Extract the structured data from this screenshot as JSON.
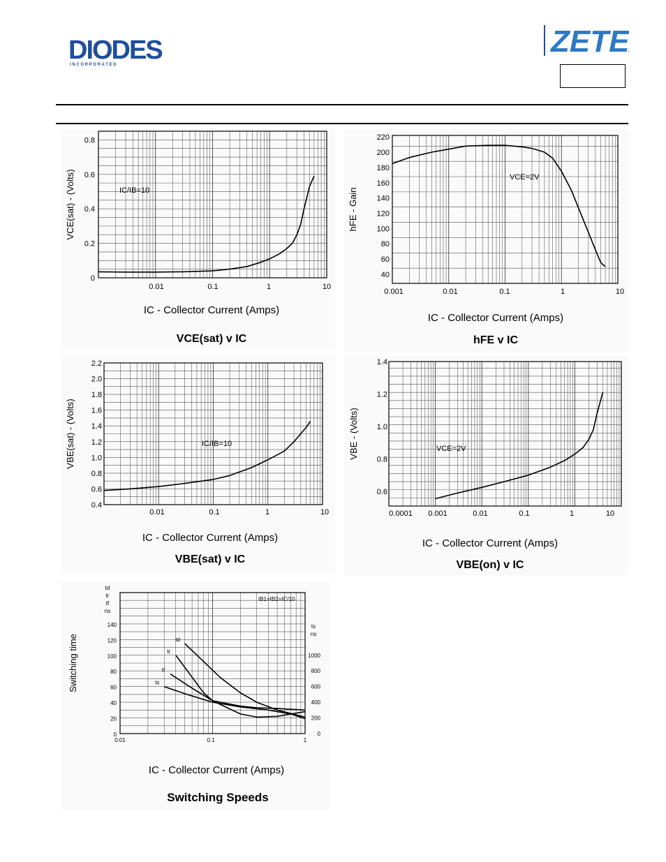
{
  "header": {
    "left_logo_text": "DIODES",
    "left_logo_subtext": "I N C O R P O R A T E D",
    "right_logo_text": "ZETEX"
  },
  "chart_data": [
    {
      "type": "line",
      "title": "VCE(sat) v IC",
      "xlabel": "IC - Collector Current (Amps)",
      "ylabel": "VCE(sat) - (Volts)",
      "x_scale": "log",
      "xlim": [
        0.001,
        10
      ],
      "ylim": [
        0,
        0.85
      ],
      "x_ticks": [
        "0.01",
        "0.1",
        "1",
        "10"
      ],
      "y_ticks": [
        "0",
        "0.2",
        "0.4",
        "0.6",
        "0.8"
      ],
      "annotations": [
        "IC/IB=10"
      ],
      "series": [
        {
          "x": [
            0.001,
            0.003,
            0.01,
            0.03,
            0.1,
            0.2,
            0.4,
            0.7,
            1.0,
            1.5,
            2.0,
            2.5,
            3.0,
            3.5,
            4.0,
            5.0,
            6.0
          ],
          "y": [
            0.035,
            0.033,
            0.033,
            0.035,
            0.04,
            0.05,
            0.065,
            0.09,
            0.11,
            0.14,
            0.17,
            0.2,
            0.25,
            0.31,
            0.4,
            0.53,
            0.59
          ]
        }
      ]
    },
    {
      "type": "line",
      "title": "hFE v IC",
      "xlabel": "IC - Collector Current (Amps)",
      "ylabel": "hFE - Gain",
      "x_scale": "log",
      "xlim": [
        0.001,
        10
      ],
      "ylim": [
        28,
        222
      ],
      "x_ticks": [
        "0.001",
        "0.01",
        "0.1",
        "1",
        "10"
      ],
      "y_ticks": [
        "40",
        "60",
        "80",
        "100",
        "120",
        "140",
        "160",
        "180",
        "200",
        "220"
      ],
      "annotations": [
        "VCE=2V"
      ],
      "series": [
        {
          "x": [
            0.001,
            0.002,
            0.005,
            0.01,
            0.02,
            0.05,
            0.1,
            0.2,
            0.3,
            0.5,
            0.7,
            1.0,
            1.5,
            2.0,
            3.0,
            4.0,
            5.0,
            6.0
          ],
          "y": [
            185,
            193,
            200,
            204,
            208,
            209,
            209,
            207,
            205,
            200,
            192,
            175,
            150,
            127,
            95,
            72,
            55,
            50
          ]
        }
      ]
    },
    {
      "type": "line",
      "title": "VBE(sat) v IC",
      "xlabel": "IC - Collector Current (Amps)",
      "ylabel": "VBE(sat) - (Volts)",
      "x_scale": "log",
      "xlim": [
        0.001,
        10
      ],
      "ylim": [
        0.4,
        2.2
      ],
      "x_ticks": [
        "0.01",
        "0.1",
        "1",
        "10"
      ],
      "y_ticks": [
        "0.4",
        "0.6",
        "0.8",
        "1.0",
        "1.2",
        "1.4",
        "1.6",
        "1.8",
        "2.0",
        "2.2"
      ],
      "annotations": [
        "IC/IB=10"
      ],
      "series": [
        {
          "x": [
            0.001,
            0.003,
            0.01,
            0.03,
            0.1,
            0.2,
            0.5,
            1.0,
            2.0,
            3.0,
            5.0,
            6.0
          ],
          "y": [
            0.58,
            0.6,
            0.63,
            0.67,
            0.72,
            0.77,
            0.87,
            0.97,
            1.08,
            1.2,
            1.38,
            1.46
          ]
        }
      ]
    },
    {
      "type": "line",
      "title": "VBE(on) v IC",
      "xlabel": "IC - Collector Current (Amps)",
      "ylabel": "VBE - (Volts)",
      "x_scale": "log",
      "xlim": [
        0.0001,
        10
      ],
      "ylim": [
        0.51,
        1.4
      ],
      "x_ticks": [
        "0.0001",
        "0.001",
        "0.01",
        "0.1",
        "1",
        "10"
      ],
      "y_ticks": [
        "0.6",
        "0.8",
        "1.0",
        "1.2",
        "1.4"
      ],
      "annotations": [
        "VCE=2V"
      ],
      "series": [
        {
          "x": [
            0.001,
            0.003,
            0.01,
            0.03,
            0.1,
            0.3,
            0.6,
            1.0,
            1.5,
            2.0,
            2.5,
            3.0,
            4.0
          ],
          "y": [
            0.555,
            0.59,
            0.625,
            0.66,
            0.7,
            0.75,
            0.79,
            0.83,
            0.87,
            0.92,
            0.98,
            1.08,
            1.21
          ]
        }
      ]
    },
    {
      "type": "line",
      "title": "Switching Speeds",
      "xlabel": "IC - Collector Current (Amps)",
      "ylabel": "Switching time",
      "x_scale": "log",
      "xlim": [
        0.01,
        1
      ],
      "ylim": [
        0,
        180
      ],
      "y2lim": [
        0,
        1800
      ],
      "x_ticks": [
        "0.01",
        "0.1",
        "1"
      ],
      "y_ticks": [
        "0",
        "20",
        "40",
        "60",
        "80",
        "100",
        "120",
        "140"
      ],
      "y2_ticks": [
        "0",
        "200",
        "400",
        "600",
        "800",
        "1000"
      ],
      "y_unit_label": [
        "td",
        "tr",
        "tf",
        "ns"
      ],
      "y2_unit_label": [
        "ts",
        "ns"
      ],
      "annotations": [
        "IB1=IB2=IC/10"
      ],
      "series": [
        {
          "name": "td",
          "axis": "left",
          "x": [
            0.05,
            0.08,
            0.12,
            0.2,
            0.3,
            0.5,
            0.8,
            1.0
          ],
          "y": [
            115,
            92,
            72,
            52,
            40,
            30,
            24,
            21
          ]
        },
        {
          "name": "tr",
          "axis": "left",
          "x": [
            0.04,
            0.06,
            0.08,
            0.1,
            0.15,
            0.2,
            0.3,
            0.5,
            1.0
          ],
          "y": [
            100,
            72,
            52,
            42,
            32,
            25,
            21,
            22,
            28
          ]
        },
        {
          "name": "tf",
          "axis": "left",
          "x": [
            0.035,
            0.06,
            0.1,
            0.2,
            0.3,
            0.5,
            1.0
          ],
          "y": [
            76,
            58,
            42,
            35,
            33,
            32,
            30
          ]
        },
        {
          "name": "ts",
          "axis": "right",
          "x": [
            0.03,
            0.05,
            0.1,
            0.2,
            0.4,
            0.7,
            1.0
          ],
          "y": [
            600,
            510,
            400,
            340,
            300,
            250,
            190
          ]
        }
      ]
    }
  ]
}
